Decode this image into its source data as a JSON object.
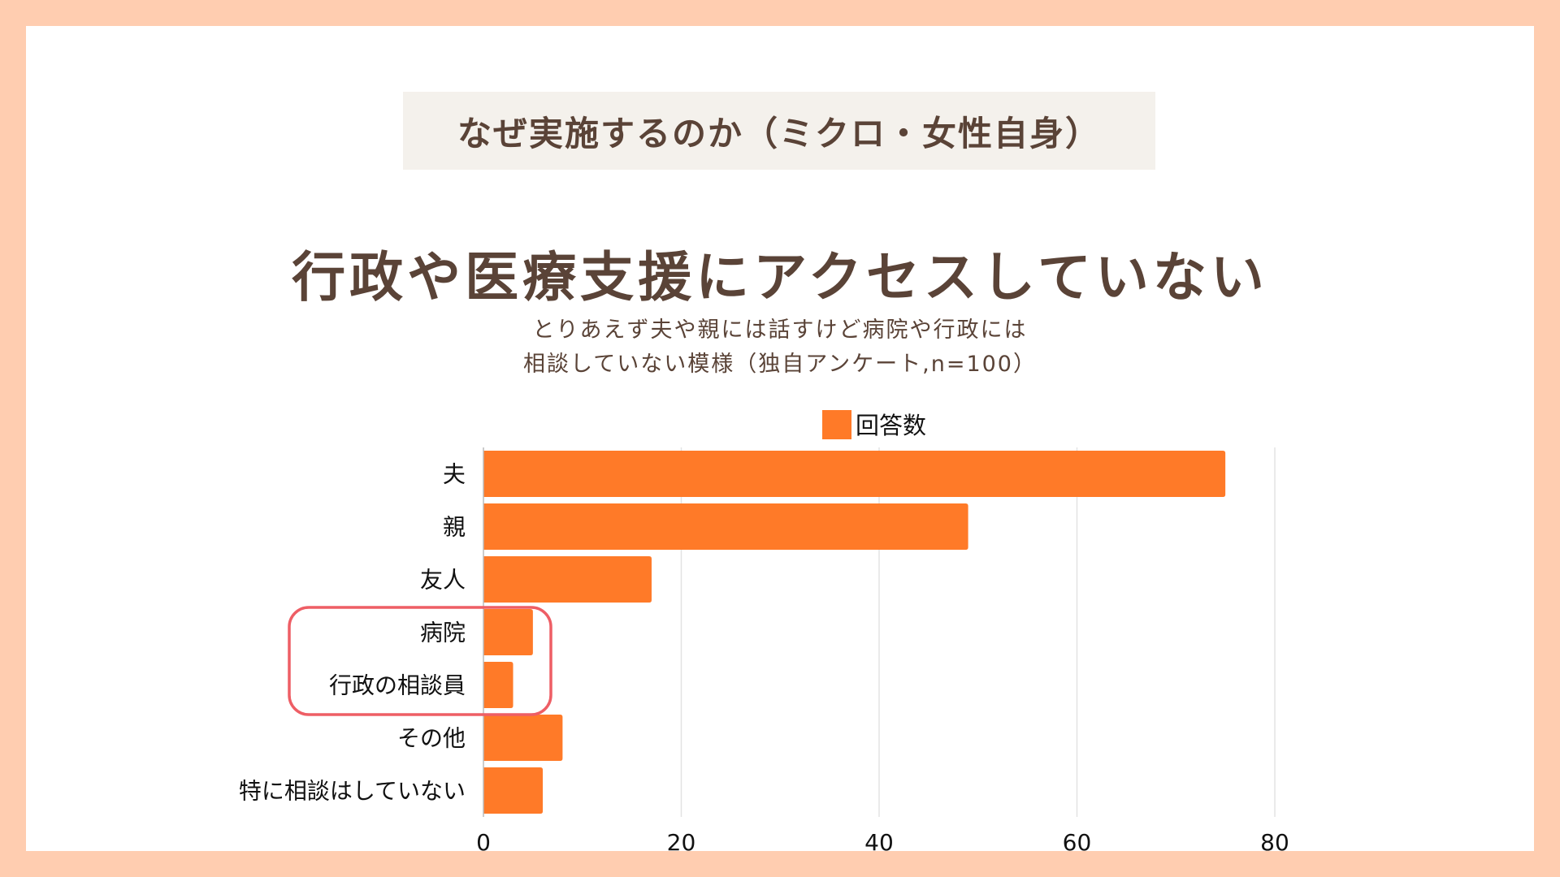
{
  "header": {
    "section_title": "なぜ実施するのか（ミクロ・女性自身）",
    "headline": "行政や医療支援にアクセスしていない",
    "subtitle_lines": [
      "とりあえず夫や親には話すけど病院や行政には",
      "相談していない模様（独自アンケート,n=100）"
    ]
  },
  "colors": {
    "border": "#FFCDB0",
    "title_box": "#F4F1EC",
    "text": "#5A4337",
    "bar": "#FF7A28",
    "highlight": "#EE5E65",
    "grid": "#E3E3E3"
  },
  "chart_data": {
    "type": "bar",
    "orientation": "horizontal",
    "title": "行政や医療支援にアクセスしていない",
    "categories": [
      "夫",
      "親",
      "友人",
      "病院",
      "行政の相談員",
      "その他",
      "特に相談はしていない"
    ],
    "series": [
      {
        "name": "回答数",
        "values": [
          75,
          49,
          17,
          5,
          3,
          8,
          6
        ]
      }
    ],
    "xlabel": "",
    "ylabel": "",
    "xlim": [
      0,
      80
    ],
    "xticks": [
      0,
      20,
      40,
      60,
      80
    ],
    "xtick_labels": [
      "0",
      "20",
      "40",
      "60",
      "80"
    ],
    "grid": true,
    "legend_position": "top-center",
    "highlighted_categories": [
      "病院",
      "行政の相談員"
    ]
  }
}
